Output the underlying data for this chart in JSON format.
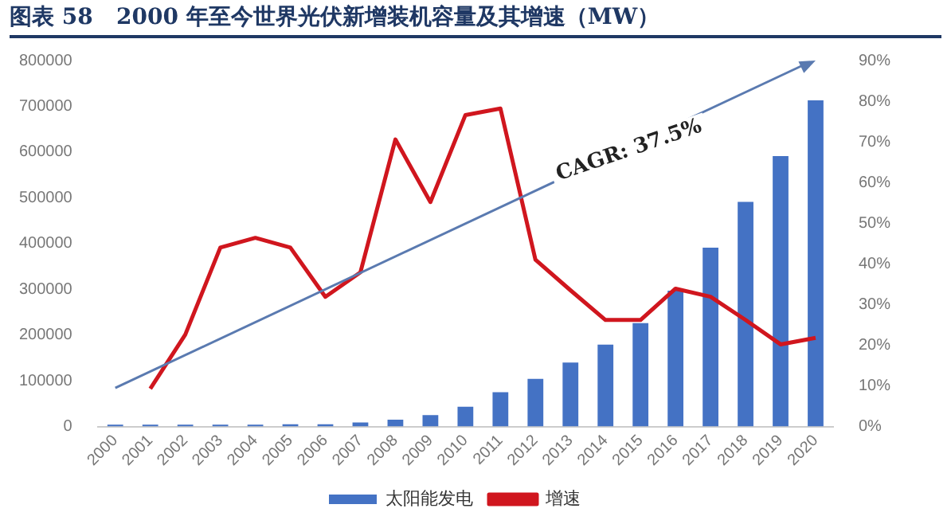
{
  "chart_data": {
    "type": "bar",
    "title": "图表 58   2000 年至今世界光伏新增装机容量及其增速（MW）",
    "categories": [
      "2000",
      "2001",
      "2002",
      "2003",
      "2004",
      "2005",
      "2006",
      "2007",
      "2008",
      "2009",
      "2010",
      "2011",
      "2012",
      "2013",
      "2014",
      "2015",
      "2016",
      "2017",
      "2018",
      "2019",
      "2020"
    ],
    "series": [
      {
        "name": "太阳能发电",
        "color": "#4472c4",
        "values": [
          4000,
          4000,
          4000,
          4000,
          4000,
          5000,
          5000,
          9000,
          15000,
          25000,
          43000,
          75000,
          104000,
          140000,
          179000,
          226000,
          297000,
          391000,
          491000,
          591000,
          713000
        ]
      },
      {
        "name": "增速",
        "type": "line",
        "axis": "y2",
        "color": "#d0161e",
        "values": [
          null,
          9.3,
          22.6,
          44,
          46.4,
          44,
          31.9,
          37.9,
          70.6,
          55.2,
          76.6,
          78.2,
          41,
          33.5,
          26.2,
          26.2,
          33.9,
          31.9,
          26.2,
          20.2,
          21.8
        ]
      }
    ],
    "ylim": [
      0,
      800000
    ],
    "yticks": [
      0,
      100000,
      200000,
      300000,
      400000,
      500000,
      600000,
      700000,
      800000
    ],
    "y2lim": [
      0,
      90
    ],
    "y2ticks": [
      {
        "value": 0,
        "label": "0%"
      },
      {
        "value": 10,
        "label": "10%"
      },
      {
        "value": 20,
        "label": "20%"
      },
      {
        "value": 30,
        "label": "30%"
      },
      {
        "value": 40,
        "label": "40%"
      },
      {
        "value": 50,
        "label": "50%"
      },
      {
        "value": 60,
        "label": "60%"
      },
      {
        "value": 70,
        "label": "70%"
      },
      {
        "value": 80,
        "label": "80%"
      },
      {
        "value": 90,
        "label": "90%"
      }
    ],
    "annotations": [
      "CAGR: 37.5%"
    ],
    "grid": false,
    "legend": "bottom",
    "marker": "none"
  }
}
